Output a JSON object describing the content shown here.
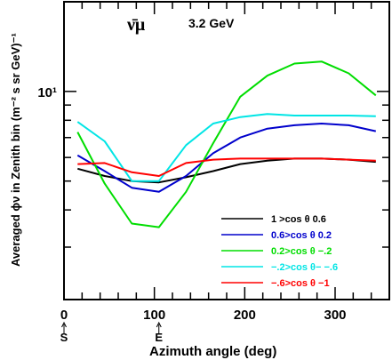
{
  "chart_data": {
    "type": "line",
    "title": "3.2 GeV",
    "particle_label": "ν̄μ",
    "xlabel": "Azimuth angle (deg)",
    "ylabel": "Averaged  ϕν in Zenith bin   (m⁻² s sr GeV)⁻¹",
    "y_scale": "log",
    "xlim": [
      0,
      360
    ],
    "ylim": [
      2.0,
      20.0
    ],
    "x_ticks": [
      0,
      100,
      200,
      300
    ],
    "y_ticks": [
      {
        "value": 10,
        "label": "10¹"
      }
    ],
    "x_markers": [
      {
        "x": 0,
        "label": "S"
      },
      {
        "x": 105,
        "label": "E"
      }
    ],
    "legend_position": "bottom-right",
    "x": [
      15,
      45,
      75,
      105,
      135,
      165,
      195,
      225,
      255,
      285,
      315,
      345
    ],
    "series": [
      {
        "name": "1 >cos  θ 0.6",
        "color": "#000000",
        "values": [
          5.5,
          5.2,
          5.0,
          4.95,
          5.15,
          5.4,
          5.7,
          5.85,
          5.95,
          5.95,
          5.9,
          5.8
        ]
      },
      {
        "name": "0.6>cos  θ 0.2",
        "color": "#0000cc",
        "values": [
          6.1,
          5.4,
          4.75,
          4.6,
          5.2,
          6.2,
          7.0,
          7.5,
          7.7,
          7.8,
          7.7,
          7.35
        ]
      },
      {
        "name": "0.2>cos  θ −.2",
        "color": "#00dd00",
        "values": [
          7.3,
          4.9,
          3.6,
          3.5,
          4.6,
          6.7,
          9.6,
          11.3,
          12.4,
          12.6,
          11.5,
          9.7
        ]
      },
      {
        "name": "−.2>cos  θ− −.6",
        "color": "#00e5e5",
        "values": [
          7.9,
          6.8,
          5.0,
          5.0,
          6.6,
          7.8,
          8.2,
          8.4,
          8.3,
          8.3,
          8.3,
          8.25
        ]
      },
      {
        "name": "−.6>cos  θ −1",
        "color": "#ff0000",
        "values": [
          5.7,
          5.75,
          5.35,
          5.2,
          5.75,
          5.9,
          5.95,
          5.95,
          5.95,
          5.95,
          5.9,
          5.85
        ]
      }
    ]
  }
}
